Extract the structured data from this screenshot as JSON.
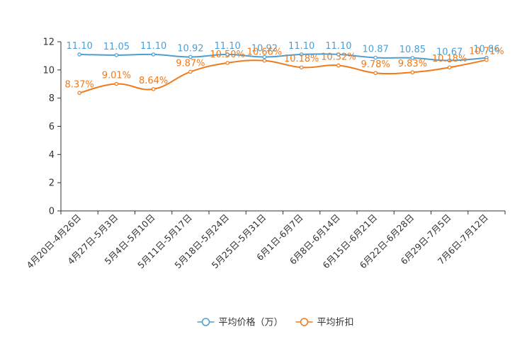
{
  "chart_data": {
    "type": "line",
    "title": "",
    "xlabel": "",
    "ylabel": "",
    "ylim": [
      0,
      12
    ],
    "yticks": [
      0,
      2,
      4,
      6,
      8,
      10,
      12
    ],
    "grid": false,
    "legend_position": "bottom",
    "categories": [
      "4月20日-4月26日",
      "4月27日-5月3日",
      "5月4日-5月10日",
      "5月11日-5月17日",
      "5月18日-5月24日",
      "5月25日-5月31日",
      "6月1日-6月7日",
      "6月8日-6月14日",
      "6月15日-6月21日",
      "6月22日-6月28日",
      "6月29日-7月5日",
      "7月6日-7月12日"
    ],
    "series": [
      {
        "name": "平均价格（万）",
        "color": "#4e9fd1",
        "values": [
          11.1,
          11.05,
          11.1,
          10.92,
          11.1,
          10.92,
          11.1,
          11.1,
          10.87,
          10.85,
          10.67,
          10.86
        ],
        "labels": [
          "11.10",
          "11.05",
          "11.10",
          "10.92",
          "11.10",
          "10.92",
          "11.10",
          "11.10",
          "10.87",
          "10.85",
          "10.67",
          "10.86"
        ]
      },
      {
        "name": "平均折扣",
        "color": "#f0791a",
        "values": [
          8.37,
          9.01,
          8.64,
          9.87,
          10.5,
          10.66,
          10.18,
          10.32,
          9.78,
          9.83,
          10.18,
          10.71
        ],
        "labels": [
          "8.37%",
          "9.01%",
          "8.64%",
          "9.87%",
          "10.50%",
          "10.66%",
          "10.18%",
          "10.32%",
          "9.78%",
          "9.83%",
          "10.18%",
          "10.71%"
        ]
      }
    ]
  }
}
